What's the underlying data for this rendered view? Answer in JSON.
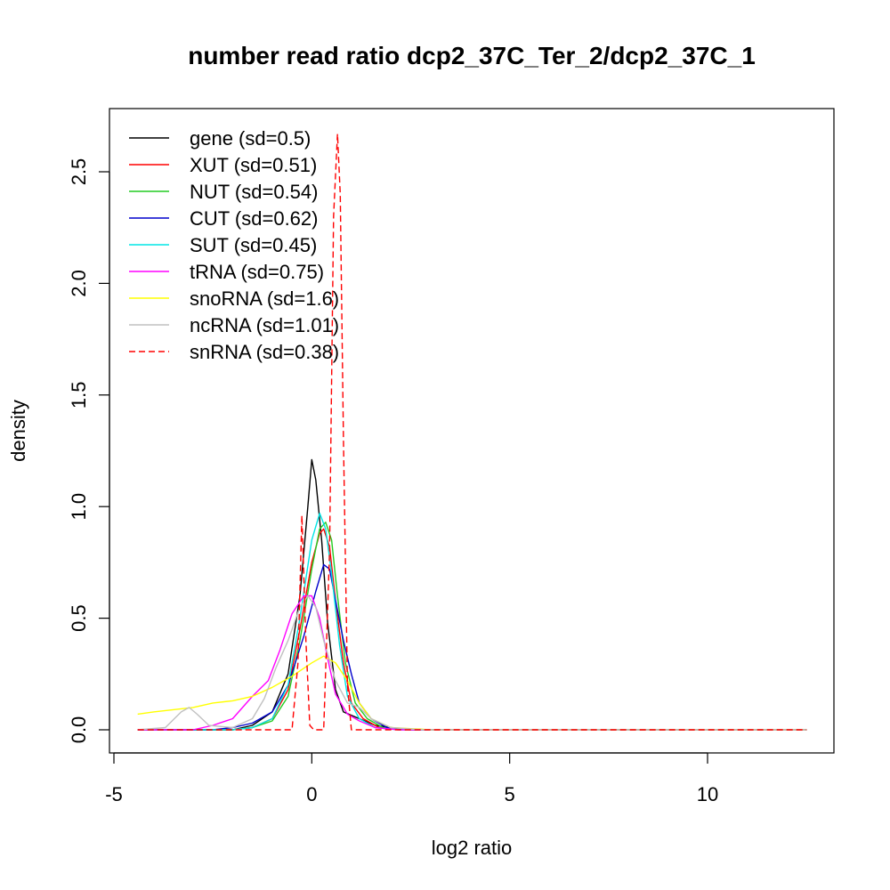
{
  "chart_data": {
    "type": "line",
    "title": "number read ratio dcp2_37C_Ter_2/dcp2_37C_1",
    "xlabel": "log2 ratio",
    "ylabel": "density",
    "xlim": [
      -5,
      13
    ],
    "ylim": [
      0,
      2.7
    ],
    "x_ticks": [
      -5,
      0,
      5,
      10
    ],
    "y_ticks": [
      0.0,
      0.5,
      1.0,
      1.5,
      2.0,
      2.5
    ],
    "x_tick_labels": [
      "-5",
      "0",
      "5",
      "10"
    ],
    "y_tick_labels": [
      "0.0",
      "0.5",
      "1.0",
      "1.5",
      "2.0",
      "2.5"
    ],
    "grid": false,
    "legend_position": "top-left",
    "series": [
      {
        "name": "gene (sd=0.5)",
        "color": "#000000",
        "dash": "solid",
        "points": [
          [
            -4.4,
            0
          ],
          [
            -2.0,
            0
          ],
          [
            -1.5,
            0.02
          ],
          [
            -1.0,
            0.08
          ],
          [
            -0.6,
            0.25
          ],
          [
            -0.3,
            0.6
          ],
          [
            -0.1,
            1.0
          ],
          [
            0.0,
            1.21
          ],
          [
            0.1,
            1.12
          ],
          [
            0.25,
            0.85
          ],
          [
            0.4,
            0.48
          ],
          [
            0.6,
            0.18
          ],
          [
            0.8,
            0.08
          ],
          [
            1.2,
            0.05
          ],
          [
            1.6,
            0.02
          ],
          [
            2.2,
            0.005
          ],
          [
            3.0,
            0
          ],
          [
            12.5,
            0
          ]
        ]
      },
      {
        "name": "XUT (sd=0.51)",
        "color": "#ff0000",
        "dash": "solid",
        "points": [
          [
            -4.4,
            0
          ],
          [
            -2.0,
            0
          ],
          [
            -1.5,
            0.01
          ],
          [
            -1.0,
            0.05
          ],
          [
            -0.6,
            0.18
          ],
          [
            -0.3,
            0.45
          ],
          [
            0.0,
            0.75
          ],
          [
            0.2,
            0.88
          ],
          [
            0.3,
            0.9
          ],
          [
            0.45,
            0.82
          ],
          [
            0.6,
            0.58
          ],
          [
            0.8,
            0.3
          ],
          [
            1.0,
            0.12
          ],
          [
            1.3,
            0.05
          ],
          [
            1.7,
            0.01
          ],
          [
            2.5,
            0
          ],
          [
            12.5,
            0
          ]
        ]
      },
      {
        "name": "NUT (sd=0.54)",
        "color": "#22cc22",
        "dash": "solid",
        "points": [
          [
            -4.4,
            0
          ],
          [
            -2.0,
            0
          ],
          [
            -1.5,
            0.01
          ],
          [
            -1.0,
            0.04
          ],
          [
            -0.6,
            0.15
          ],
          [
            -0.3,
            0.4
          ],
          [
            0.0,
            0.72
          ],
          [
            0.2,
            0.9
          ],
          [
            0.35,
            0.93
          ],
          [
            0.5,
            0.85
          ],
          [
            0.65,
            0.6
          ],
          [
            0.85,
            0.3
          ],
          [
            1.1,
            0.12
          ],
          [
            1.4,
            0.05
          ],
          [
            1.8,
            0.01
          ],
          [
            2.5,
            0
          ],
          [
            12.5,
            0
          ]
        ]
      },
      {
        "name": "CUT (sd=0.62)",
        "color": "#0000cc",
        "dash": "solid",
        "points": [
          [
            -4.4,
            0
          ],
          [
            -2.5,
            0
          ],
          [
            -2.0,
            0.01
          ],
          [
            -1.5,
            0.03
          ],
          [
            -1.0,
            0.08
          ],
          [
            -0.6,
            0.2
          ],
          [
            -0.2,
            0.42
          ],
          [
            0.1,
            0.62
          ],
          [
            0.3,
            0.74
          ],
          [
            0.45,
            0.72
          ],
          [
            0.6,
            0.58
          ],
          [
            0.8,
            0.4
          ],
          [
            1.0,
            0.25
          ],
          [
            1.2,
            0.12
          ],
          [
            1.5,
            0.05
          ],
          [
            1.9,
            0.01
          ],
          [
            2.6,
            0
          ],
          [
            12.5,
            0
          ]
        ]
      },
      {
        "name": "SUT (sd=0.45)",
        "color": "#00e5e5",
        "dash": "solid",
        "points": [
          [
            -4.4,
            0
          ],
          [
            -2.0,
            0
          ],
          [
            -1.5,
            0.01
          ],
          [
            -1.0,
            0.05
          ],
          [
            -0.6,
            0.2
          ],
          [
            -0.3,
            0.5
          ],
          [
            0.0,
            0.85
          ],
          [
            0.2,
            0.97
          ],
          [
            0.35,
            0.9
          ],
          [
            0.5,
            0.7
          ],
          [
            0.7,
            0.38
          ],
          [
            0.9,
            0.15
          ],
          [
            1.2,
            0.05
          ],
          [
            1.6,
            0.01
          ],
          [
            2.2,
            0
          ],
          [
            12.5,
            0
          ]
        ]
      },
      {
        "name": "tRNA (sd=0.75)",
        "color": "#ff00ff",
        "dash": "solid",
        "points": [
          [
            -4.4,
            0
          ],
          [
            -3.0,
            0
          ],
          [
            -2.5,
            0.02
          ],
          [
            -2.0,
            0.05
          ],
          [
            -1.5,
            0.15
          ],
          [
            -1.1,
            0.22
          ],
          [
            -0.8,
            0.36
          ],
          [
            -0.5,
            0.52
          ],
          [
            -0.2,
            0.6
          ],
          [
            0.0,
            0.6
          ],
          [
            0.2,
            0.5
          ],
          [
            0.4,
            0.32
          ],
          [
            0.6,
            0.16
          ],
          [
            0.9,
            0.07
          ],
          [
            1.2,
            0.04
          ],
          [
            1.6,
            0.01
          ],
          [
            2.2,
            0
          ],
          [
            12.5,
            0
          ]
        ]
      },
      {
        "name": "snoRNA (sd=1.6)",
        "color": "#ffff00",
        "dash": "solid",
        "points": [
          [
            -4.4,
            0.07
          ],
          [
            -4.0,
            0.08
          ],
          [
            -3.5,
            0.09
          ],
          [
            -3.0,
            0.1
          ],
          [
            -2.5,
            0.12
          ],
          [
            -2.0,
            0.13
          ],
          [
            -1.5,
            0.15
          ],
          [
            -1.0,
            0.19
          ],
          [
            -0.5,
            0.24
          ],
          [
            0.0,
            0.3
          ],
          [
            0.3,
            0.33
          ],
          [
            0.6,
            0.3
          ],
          [
            0.9,
            0.22
          ],
          [
            1.2,
            0.12
          ],
          [
            1.5,
            0.05
          ],
          [
            2.0,
            0.01
          ],
          [
            3.0,
            0
          ],
          [
            12.5,
            0
          ]
        ]
      },
      {
        "name": "ncRNA (sd=1.01)",
        "color": "#c0c0c0",
        "dash": "solid",
        "points": [
          [
            -4.4,
            0
          ],
          [
            -3.7,
            0.01
          ],
          [
            -3.3,
            0.08
          ],
          [
            -3.1,
            0.1
          ],
          [
            -2.9,
            0.07
          ],
          [
            -2.6,
            0.02
          ],
          [
            -2.0,
            0.01
          ],
          [
            -1.5,
            0.05
          ],
          [
            -1.2,
            0.14
          ],
          [
            -0.9,
            0.28
          ],
          [
            -0.6,
            0.4
          ],
          [
            -0.3,
            0.55
          ],
          [
            -0.1,
            0.6
          ],
          [
            0.1,
            0.55
          ],
          [
            0.3,
            0.4
          ],
          [
            0.6,
            0.22
          ],
          [
            0.9,
            0.12
          ],
          [
            1.2,
            0.1
          ],
          [
            1.5,
            0.05
          ],
          [
            2.0,
            0.01
          ],
          [
            2.8,
            0
          ],
          [
            12.5,
            0
          ]
        ]
      },
      {
        "name": "snRNA (sd=0.38)",
        "color": "#ff0000",
        "dash": "dashed",
        "points": [
          [
            -4.4,
            0
          ],
          [
            -0.5,
            0
          ],
          [
            -0.35,
            0.3
          ],
          [
            -0.25,
            0.96
          ],
          [
            -0.15,
            0.4
          ],
          [
            -0.05,
            0.02
          ],
          [
            0.05,
            0
          ],
          [
            0.3,
            0
          ],
          [
            0.45,
            0.8
          ],
          [
            0.55,
            2.3
          ],
          [
            0.65,
            2.67
          ],
          [
            0.72,
            2.4
          ],
          [
            0.8,
            1.3
          ],
          [
            0.9,
            0.2
          ],
          [
            1.0,
            0
          ],
          [
            12.5,
            0
          ]
        ]
      }
    ]
  }
}
